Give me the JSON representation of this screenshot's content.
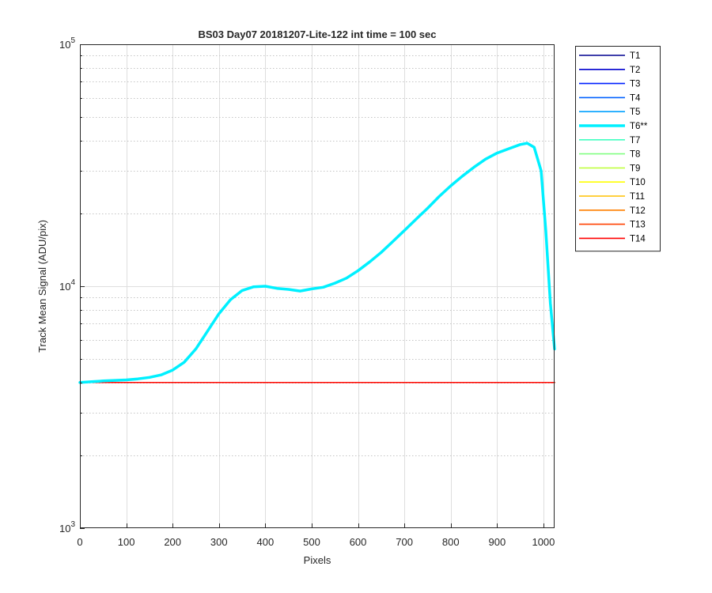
{
  "chart_data": {
    "type": "line",
    "title": "BS03 Day07 20181207-Lite-122 int time = 100 sec",
    "xlabel": "Pixels",
    "ylabel": "Track Mean Signal (ADU/pix)",
    "xlim": [
      0,
      1024
    ],
    "ylim": [
      1000,
      100000
    ],
    "yscale": "log",
    "grid": true,
    "minor_grid": true,
    "x_ticks": [
      0,
      100,
      200,
      300,
      400,
      500,
      600,
      700,
      800,
      900,
      1000
    ],
    "y_ticks": [
      {
        "value": 1000,
        "base": "10",
        "exp": "3"
      },
      {
        "value": 10000,
        "base": "10",
        "exp": "4"
      },
      {
        "value": 100000,
        "base": "10",
        "exp": "5"
      }
    ],
    "legend_position": "outside-top-right",
    "series": [
      {
        "name": "T1",
        "color": "#00008f",
        "highlight": false,
        "x": [
          0,
          1024
        ],
        "y": [
          4000,
          4000
        ]
      },
      {
        "name": "T2",
        "color": "#0000cf",
        "highlight": false,
        "x": [
          0,
          1024
        ],
        "y": [
          4000,
          4000
        ]
      },
      {
        "name": "T3",
        "color": "#0020ff",
        "highlight": false,
        "x": [
          0,
          1024
        ],
        "y": [
          4000,
          4000
        ]
      },
      {
        "name": "T4",
        "color": "#0060ff",
        "highlight": false,
        "x": [
          0,
          1024
        ],
        "y": [
          4000,
          4000
        ]
      },
      {
        "name": "T5",
        "color": "#00a0ff",
        "highlight": false,
        "x": [
          0,
          1024
        ],
        "y": [
          4000,
          4000
        ]
      },
      {
        "name": "T6**",
        "color": "#00f0ff",
        "highlight": true,
        "x": [
          0,
          25,
          50,
          75,
          100,
          125,
          150,
          175,
          200,
          225,
          250,
          275,
          300,
          325,
          350,
          375,
          400,
          425,
          450,
          475,
          500,
          525,
          550,
          575,
          600,
          625,
          650,
          675,
          700,
          725,
          750,
          775,
          800,
          825,
          850,
          875,
          900,
          925,
          950,
          965,
          980,
          995,
          1005,
          1015,
          1024
        ],
        "y": [
          4000,
          4030,
          4060,
          4080,
          4100,
          4140,
          4200,
          4300,
          4500,
          4850,
          5500,
          6500,
          7700,
          8800,
          9600,
          9950,
          10000,
          9800,
          9700,
          9550,
          9750,
          9900,
          10300,
          10800,
          11600,
          12600,
          13800,
          15300,
          17000,
          18900,
          21000,
          23500,
          26000,
          28500,
          31000,
          33500,
          35500,
          37000,
          38500,
          39000,
          37500,
          30000,
          17000,
          8500,
          5500
        ]
      },
      {
        "name": "T7",
        "color": "#40ffc0",
        "highlight": false,
        "x": [
          0,
          1024
        ],
        "y": [
          4000,
          4000
        ]
      },
      {
        "name": "T8",
        "color": "#80ff80",
        "highlight": false,
        "x": [
          0,
          1024
        ],
        "y": [
          4000,
          4000
        ]
      },
      {
        "name": "T9",
        "color": "#c0ff40",
        "highlight": false,
        "x": [
          0,
          1024
        ],
        "y": [
          4000,
          4000
        ]
      },
      {
        "name": "T10",
        "color": "#ffff00",
        "highlight": false,
        "x": [
          0,
          1024
        ],
        "y": [
          4000,
          4000
        ]
      },
      {
        "name": "T11",
        "color": "#ffc000",
        "highlight": false,
        "x": [
          0,
          1024
        ],
        "y": [
          4000,
          4000
        ]
      },
      {
        "name": "T12",
        "color": "#ff8000",
        "highlight": false,
        "x": [
          0,
          1024
        ],
        "y": [
          4000,
          4000
        ]
      },
      {
        "name": "T13",
        "color": "#ff4000",
        "highlight": false,
        "x": [
          0,
          1024
        ],
        "y": [
          4000,
          4000
        ]
      },
      {
        "name": "T14",
        "color": "#ff0000",
        "highlight": false,
        "x": [
          0,
          1024
        ],
        "y": [
          4000,
          4000
        ]
      }
    ]
  }
}
